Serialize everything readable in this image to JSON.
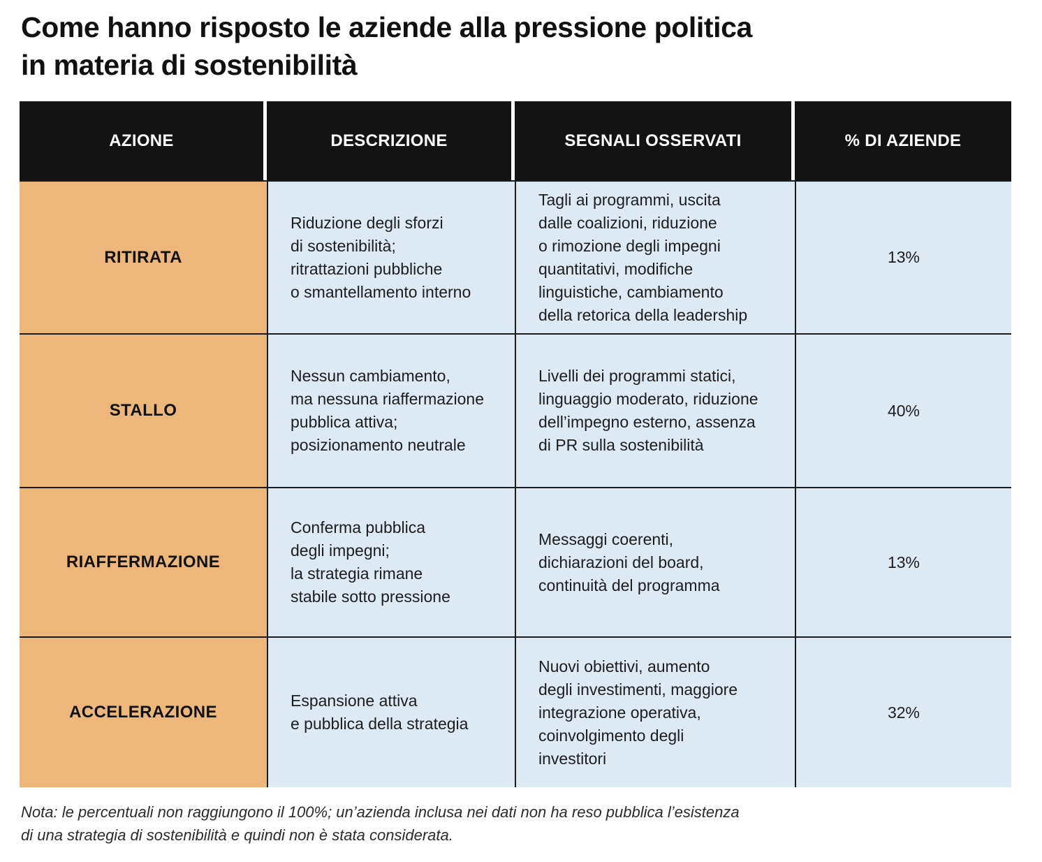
{
  "title": "Come hanno risposto le aziende alla pressione politica\nin materia di sostenibilità",
  "table": {
    "headers": [
      "AZIONE",
      "DESCRIZIONE",
      "SEGNALI OSSERVATI",
      "% DI AZIENDE"
    ],
    "rows": [
      {
        "azione": "RITIRATA",
        "descrizione": "Riduzione degli sforzi\ndi sostenibilità;\nritrattazioni pubbliche\no smantellamento interno",
        "segnali": "Tagli ai programmi, uscita\ndalle coalizioni, riduzione\no rimozione degli impegni\nquantitativi, modifiche\nlinguistiche, cambiamento\ndella retorica della leadership",
        "percent": "13%"
      },
      {
        "azione": "STALLO",
        "descrizione": "Nessun cambiamento,\nma nessuna riaffermazione\npubblica attiva;\nposizionamento neutrale",
        "segnali": "Livelli dei programmi statici,\nlinguaggio moderato, riduzione\ndell’impegno esterno, assenza\ndi PR sulla sostenibilità",
        "percent": "40%"
      },
      {
        "azione": "RIAFFERMAZIONE",
        "descrizione": "Conferma pubblica\ndegli impegni;\nla strategia rimane\nstabile sotto pressione",
        "segnali": "Messaggi coerenti,\ndichiarazioni del board,\ncontinuità del programma",
        "percent": "13%"
      },
      {
        "azione": "ACCELERAZIONE",
        "descrizione": "Espansione attiva\ne pubblica della strategia",
        "segnali": "Nuovi obiettivi, aumento\ndegli investimenti, maggiore\nintegrazione operativa,\ncoinvolgimento degli\ninvestitori",
        "percent": "32%"
      }
    ]
  },
  "note": "Nota: le percentuali non raggiungono il 100%; un’azienda inclusa nei dati non ha reso pubblica l’esistenza\ndi una strategia di sostenibilità e quindi non è stata considerata.",
  "colors": {
    "header_background": "#131313",
    "header_text": "#ffffff",
    "action_column_background": "#edb77b",
    "body_cell_background": "#dde9f3",
    "border_line": "#1b1b1b",
    "page_background": "#ffffff"
  },
  "chart_data": {
    "type": "table",
    "title": "Come hanno risposto le aziende alla pressione politica in materia di sostenibilità",
    "columns": [
      "AZIONE",
      "DESCRIZIONE",
      "SEGNALI OSSERVATI",
      "% DI AZIENDE"
    ],
    "categories": [
      "RITIRATA",
      "STALLO",
      "RIAFFERMAZIONE",
      "ACCELERAZIONE"
    ],
    "values_percent": [
      13,
      40,
      13,
      32
    ],
    "rows": [
      [
        "RITIRATA",
        "Riduzione degli sforzi di sostenibilità; ritrattazioni pubbliche o smantellamento interno",
        "Tagli ai programmi, uscita dalle coalizioni, riduzione o rimozione degli impegni quantitativi, modifiche linguistiche, cambiamento della retorica della leadership",
        "13%"
      ],
      [
        "STALLO",
        "Nessun cambiamento, ma nessuna riaffermazione pubblica attiva; posizionamento neutrale",
        "Livelli dei programmi statici, linguaggio moderato, riduzione dell’impegno esterno, assenza di PR sulla sostenibilità",
        "40%"
      ],
      [
        "RIAFFERMAZIONE",
        "Conferma pubblica degli impegni; la strategia rimane stabile sotto pressione",
        "Messaggi coerenti, dichiarazioni del board, continuità del programma",
        "13%"
      ],
      [
        "ACCELERAZIONE",
        "Espansione attiva e pubblica della strategia",
        "Nuovi obiettivi, aumento degli investimenti, maggiore integrazione operativa, coinvolgimento degli investitori",
        "32%"
      ]
    ],
    "note": "Nota: le percentuali non raggiungono il 100%; un’azienda inclusa nei dati non ha reso pubblica l’esistenza di una strategia di sostenibilità e quindi non è stata considerata."
  }
}
